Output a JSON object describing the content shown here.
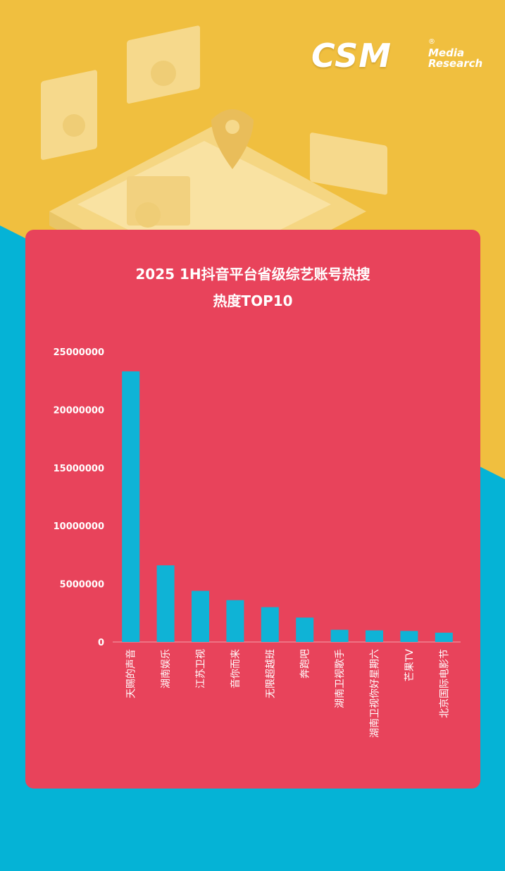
{
  "brand": {
    "logo_main": "CSM",
    "logo_reg": "®",
    "logo_sub_1": "Media",
    "logo_sub_2": "Research"
  },
  "colors": {
    "background_top": "#f0bf3f",
    "background_bottom": "#05b3d6",
    "card": "#e8435b",
    "bar": "#0fb3d6",
    "text": "#ffffff"
  },
  "chart_data": {
    "type": "bar",
    "title_line1": "2025 1H抖音平台省级综艺账号热搜",
    "title_line2": "热度TOP10",
    "categories": [
      "天赐的声音",
      "湖南娱乐",
      "江苏卫视",
      "音你而来",
      "无限超越班",
      "奔跑吧",
      "湖南卫视歌手",
      "湖南卫视你好星期六",
      "芒果TV",
      "北京国际电影节"
    ],
    "values": [
      23300000,
      6600000,
      4400000,
      3600000,
      3000000,
      2100000,
      1050000,
      1000000,
      950000,
      800000
    ],
    "y_ticks": [
      "0",
      "5000000",
      "10000000",
      "15000000",
      "20000000",
      "25000000"
    ],
    "ylim": [
      0,
      25000000
    ],
    "grid": false,
    "legend": "none"
  }
}
